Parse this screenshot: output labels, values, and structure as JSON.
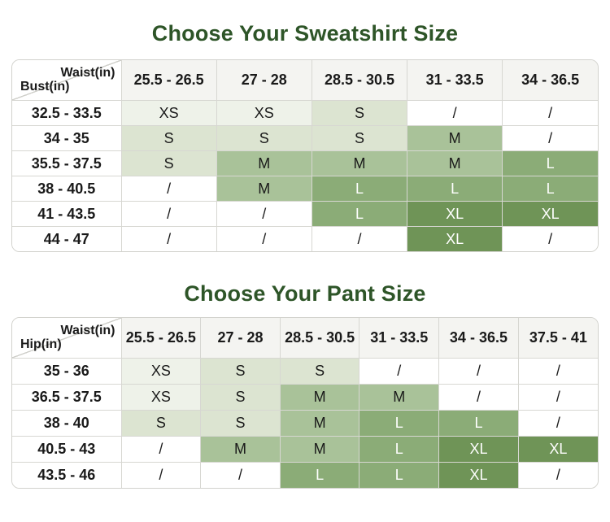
{
  "colors": {
    "title_green": "#2e5528",
    "header_bg": "#f4f4f1",
    "corner_bg": "#ffffff",
    "border": "#d7d7d2",
    "dark_text": "#1a1a1a",
    "light_text": "#ffffff",
    "page_bg": "#ffffff"
  },
  "size_colors": {
    "XS": {
      "bg": "#eef2e9",
      "text": "#1a1a1a"
    },
    "S": {
      "bg": "#dce4d1",
      "text": "#1a1a1a"
    },
    "M": {
      "bg": "#a9c299",
      "text": "#1a1a1a"
    },
    "L": {
      "bg": "#8bac77",
      "text": "#ffffff"
    },
    "XL": {
      "bg": "#6f9457",
      "text": "#ffffff"
    },
    "/": {
      "bg": "#ffffff",
      "text": "#1a1a1a"
    }
  },
  "chart_data": [
    {
      "type": "table",
      "title": "Choose Your Sweatshirt Size",
      "column_axis_label": "Waist(in)",
      "row_axis_label": "Bust(in)",
      "columns": [
        "25.5 - 26.5",
        "27 - 28",
        "28.5 - 30.5",
        "31 - 33.5",
        "34 - 36.5"
      ],
      "rows": [
        "32.5 - 33.5",
        "34 - 35",
        "35.5 - 37.5",
        "38 - 40.5",
        "41 - 43.5",
        "44 - 47"
      ],
      "values": [
        [
          "XS",
          "XS",
          "S",
          "/",
          "/"
        ],
        [
          "S",
          "S",
          "S",
          "M",
          "/"
        ],
        [
          "S",
          "M",
          "M",
          "M",
          "L"
        ],
        [
          "/",
          "M",
          "L",
          "L",
          "L"
        ],
        [
          "/",
          "/",
          "L",
          "XL",
          "XL"
        ],
        [
          "/",
          "/",
          "/",
          "XL",
          "/"
        ]
      ]
    },
    {
      "type": "table",
      "title": "Choose Your Pant Size",
      "column_axis_label": "Waist(in)",
      "row_axis_label": "Hip(in)",
      "columns": [
        "25.5 - 26.5",
        "27 - 28",
        "28.5 - 30.5",
        "31 - 33.5",
        "34 - 36.5",
        "37.5 - 41"
      ],
      "rows": [
        "35 - 36",
        "36.5 - 37.5",
        "38 - 40",
        "40.5 - 43",
        "43.5 - 46"
      ],
      "values": [
        [
          "XS",
          "S",
          "S",
          "/",
          "/",
          "/"
        ],
        [
          "XS",
          "S",
          "M",
          "M",
          "/",
          "/"
        ],
        [
          "S",
          "S",
          "M",
          "L",
          "L",
          "/"
        ],
        [
          "/",
          "M",
          "M",
          "L",
          "XL",
          "XL"
        ],
        [
          "/",
          "/",
          "L",
          "L",
          "XL",
          "/"
        ]
      ]
    }
  ]
}
